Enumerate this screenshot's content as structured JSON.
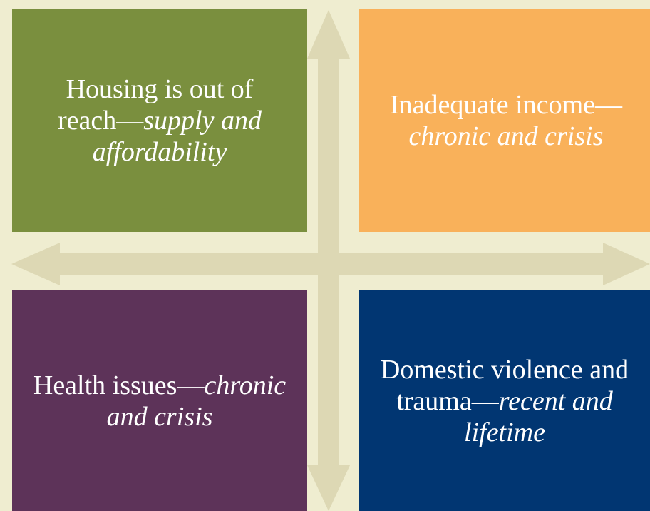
{
  "boxes": [
    {
      "color": "#7a8f3e",
      "runs": [
        {
          "text": "Housing is out of reach—",
          "italic": false
        },
        {
          "text": "supply and affordability",
          "italic": true
        }
      ]
    },
    {
      "color": "#f9b15a",
      "runs": [
        {
          "text": "Inadequate income—",
          "italic": false
        },
        {
          "text": "chronic and crisis",
          "italic": true
        }
      ]
    },
    {
      "color": "#5d3359",
      "runs": [
        {
          "text": "Health issues—",
          "italic": false
        },
        {
          "text": "chronic and crisis",
          "italic": true
        }
      ]
    },
    {
      "color": "#013672",
      "runs": [
        {
          "text": "Domestic violence and trauma—",
          "italic": false
        },
        {
          "text": "recent and lifetime",
          "italic": true
        }
      ]
    }
  ]
}
